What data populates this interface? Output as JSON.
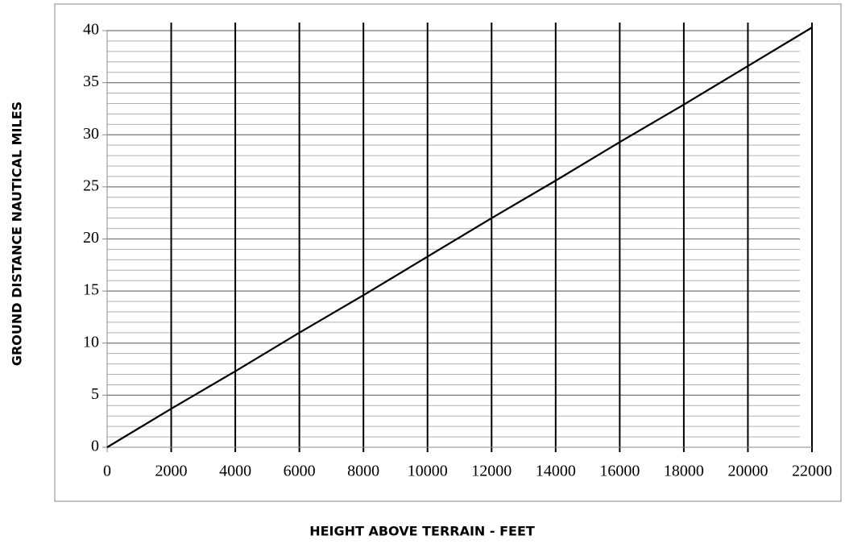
{
  "chart_data": {
    "type": "line",
    "xlabel": "HEIGHT ABOVE TERRAIN - FEET",
    "ylabel": "GROUND DISTANCE NAUTICAL MILES",
    "x": [
      0,
      2000,
      4000,
      6000,
      8000,
      10000,
      12000,
      14000,
      16000,
      18000,
      20000,
      22000
    ],
    "series": [
      {
        "color": "#000000",
        "values": [
          0,
          3.7,
          7.3,
          11,
          14.6,
          18.3,
          22,
          25.6,
          29.3,
          32.9,
          36.6,
          40.3
        ]
      }
    ],
    "xlim": [
      0,
      22000
    ],
    "xticks": [
      0,
      2000,
      4000,
      6000,
      8000,
      10000,
      12000,
      14000,
      16000,
      18000,
      20000,
      22000
    ],
    "ylim": [
      0,
      40
    ],
    "yticks": [
      0,
      5,
      10,
      15,
      20,
      25,
      30,
      35,
      40
    ],
    "grid": true,
    "minor_grid": true
  }
}
